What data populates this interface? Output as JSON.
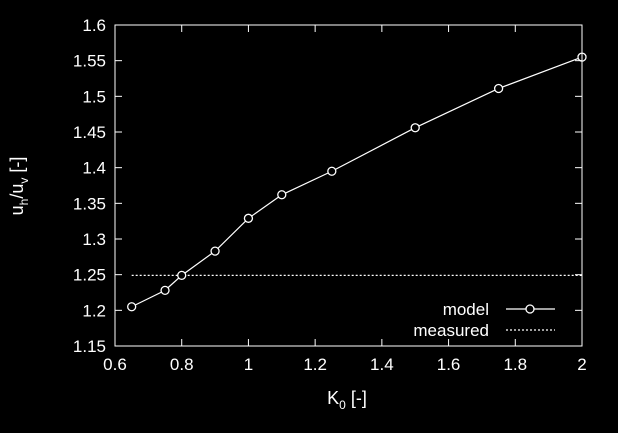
{
  "chart_data": {
    "type": "line",
    "xlabel": {
      "main": "K",
      "sub": "0",
      "unit": " [-]"
    },
    "ylabel": {
      "part1": "u",
      "sub1": "h",
      "slash": "/u",
      "sub2": "v",
      "unit": " [-]"
    },
    "xlim": [
      0.6,
      2.0
    ],
    "ylim": [
      1.15,
      1.6
    ],
    "x_ticks": [
      0.6,
      0.8,
      1.0,
      1.2,
      1.4,
      1.6,
      1.8,
      2.0
    ],
    "x_tick_labels": [
      "0.6",
      "0.8",
      "1",
      "1.2",
      "1.4",
      "1.6",
      "1.8",
      "2"
    ],
    "y_ticks": [
      1.15,
      1.2,
      1.25,
      1.3,
      1.35,
      1.4,
      1.45,
      1.5,
      1.55,
      1.6
    ],
    "y_tick_labels": [
      "1.15",
      "1.2",
      "1.25",
      "1.3",
      "1.35",
      "1.4",
      "1.45",
      "1.5",
      "1.55",
      "1.6"
    ],
    "grid": false,
    "legend_position": "bottom-right",
    "series": [
      {
        "name": "model",
        "style": "solid-line-with-circle-markers",
        "color": "#ffffff",
        "x": [
          0.65,
          0.75,
          0.8,
          0.9,
          1.0,
          1.1,
          1.25,
          1.5,
          1.75,
          2.0
        ],
        "y": [
          1.205,
          1.228,
          1.249,
          1.283,
          1.329,
          1.362,
          1.395,
          1.456,
          1.511,
          1.555
        ]
      },
      {
        "name": "measured",
        "style": "dotted-line",
        "color": "#ffffff",
        "x": [
          0.65,
          2.0
        ],
        "y": [
          1.249,
          1.249
        ]
      }
    ]
  }
}
